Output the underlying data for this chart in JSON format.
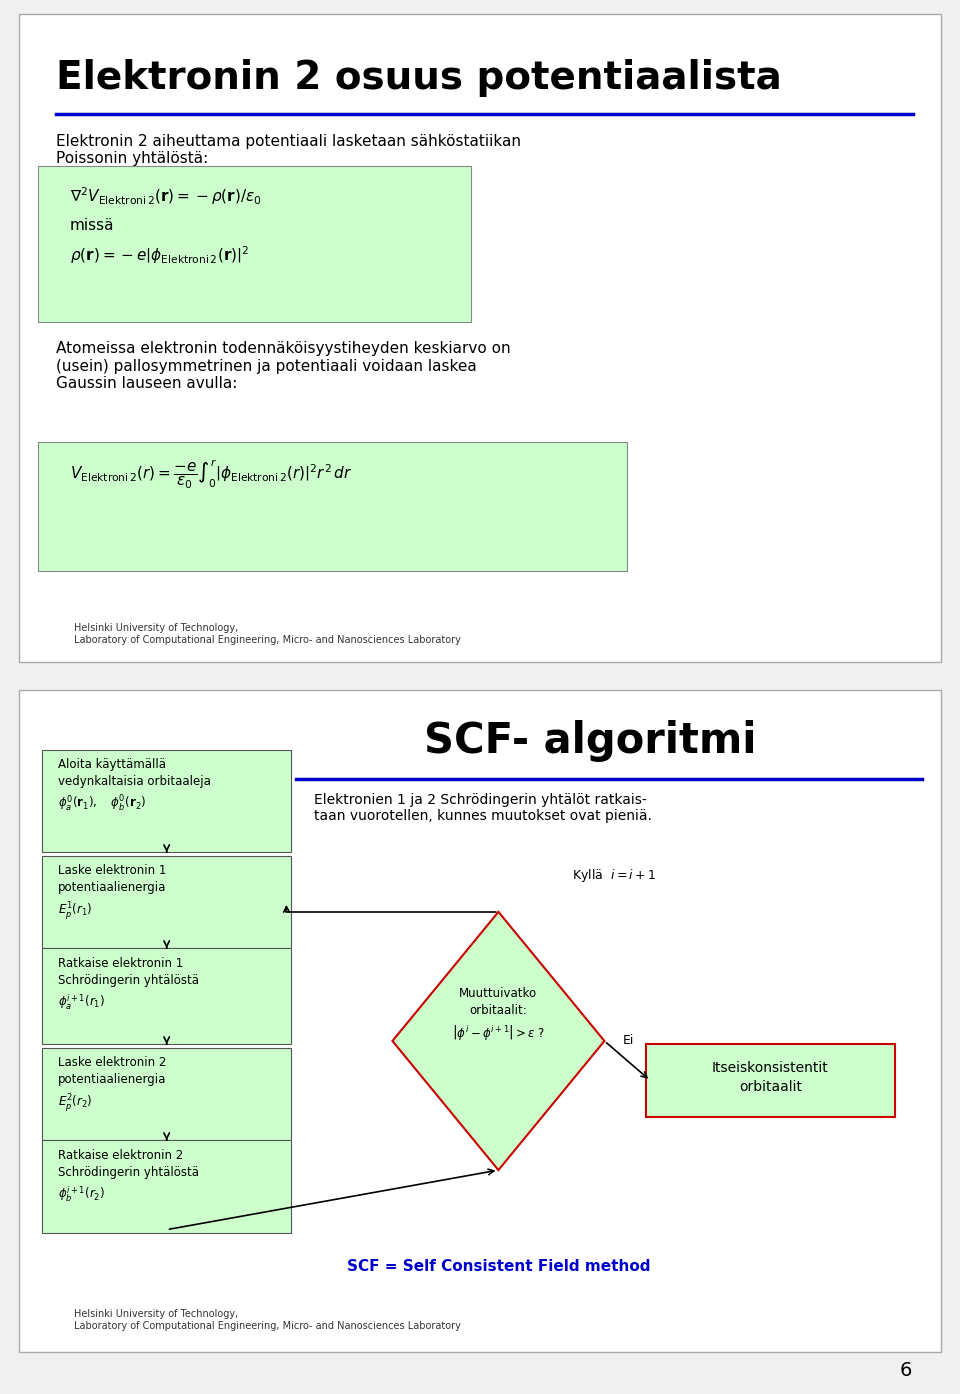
{
  "background_color": "#f0f0f0",
  "slide1": {
    "bg": "#ffffff",
    "title": "Elektronin 2 osuus potentiaalista",
    "title_color": "#000000",
    "title_fontsize": 28,
    "blue_line_color": "#0000cc",
    "text1": "Elektronin 2 aiheuttama potentiaali lasketaan sähköstatiikan\nPoissonin yhtälöstä:",
    "green_box1_formula": "$\\nabla^2 V_{\\mathrm{Elektroni\\,2}}(\\mathbf{r}) = -\\rho(\\mathbf{r})/\\varepsilon_0$",
    "green_box1_text": "missä",
    "green_box1_formula2": "$\\rho(\\mathbf{r}) = -e\\left|\\phi_{\\mathrm{Elektroni\\,2}}(\\mathbf{r})\\right|^2$",
    "text2": "Atomeissa elektronin todennäköisyystiheyden keskiarvo on\n(usein) pallosymmetrinen ja potentiaali voidaan laskea\nGaussin lauseen avulla:",
    "green_box2_formula": "$V_{\\mathrm{Elektroni\\,2}}(r) = \\dfrac{-e}{\\varepsilon_0}\\int_0^r\\left|\\phi_{\\mathrm{Elektroni\\,2}}(r)\\right|^2 r^2\\,dr$",
    "footer": "Helsinki University of Technology,\nLaboratory of Computational Engineering, Micro- and Nanosciences Laboratory",
    "green_color": "#ccffcc"
  },
  "slide2": {
    "bg": "#ffffff",
    "title": "SCF- algoritmi",
    "title_fontsize": 30,
    "blue_line_color": "#0000cc",
    "subtitle": "Elektronien 1 ja 2 Schrödingerin yhtälöt ratkais-\ntaan vuorotellen, kunnes muutokset ovat pieniä.",
    "box1_text": "Aloita käyttämällä\nvedynkaltaisia orbitaaleja\n$\\phi_a^0(\\mathbf{r}_1),\\quad \\phi_b^0(\\mathbf{r}_2)$",
    "box2_text": "Laske elektronin 1\npotentiaalienergia\n$E_p^1(r_1)$",
    "box3_text": "Ratkaise elektronin 1\nSchrödingerin yhtälöstä\n$\\phi_a^{i+1}(r_1)$",
    "box4_text": "Laske elektronin 2\npotentiaalienergia\n$E_p^2(r_2)$",
    "box5_text": "Ratkaise elektronin 2\nSchrödingerin yhtälöstä\n$\\phi_b^{i+1}(r_2)$",
    "diamond_text": "Muuttuivatko\norbitaalit:\n$\\left|\\phi^i - \\phi^{i+1}\\right| > \\varepsilon$ ?",
    "kylla_text": "Kyllä  $i = i+1$",
    "ei_text": "Ei",
    "result_box_text": "Itseiskonsistentit\norbitaalit",
    "scf_text": "SCF = Self Consistent Field method",
    "green_color": "#ccffcc",
    "red_box_color": "#ff6666",
    "diamond_border": "#cc0000",
    "footer": "Helsinki University of Technology,\nLaboratory of Computational Engineering, Micro- and Nanosciences Laboratory"
  },
  "page_number": "6"
}
